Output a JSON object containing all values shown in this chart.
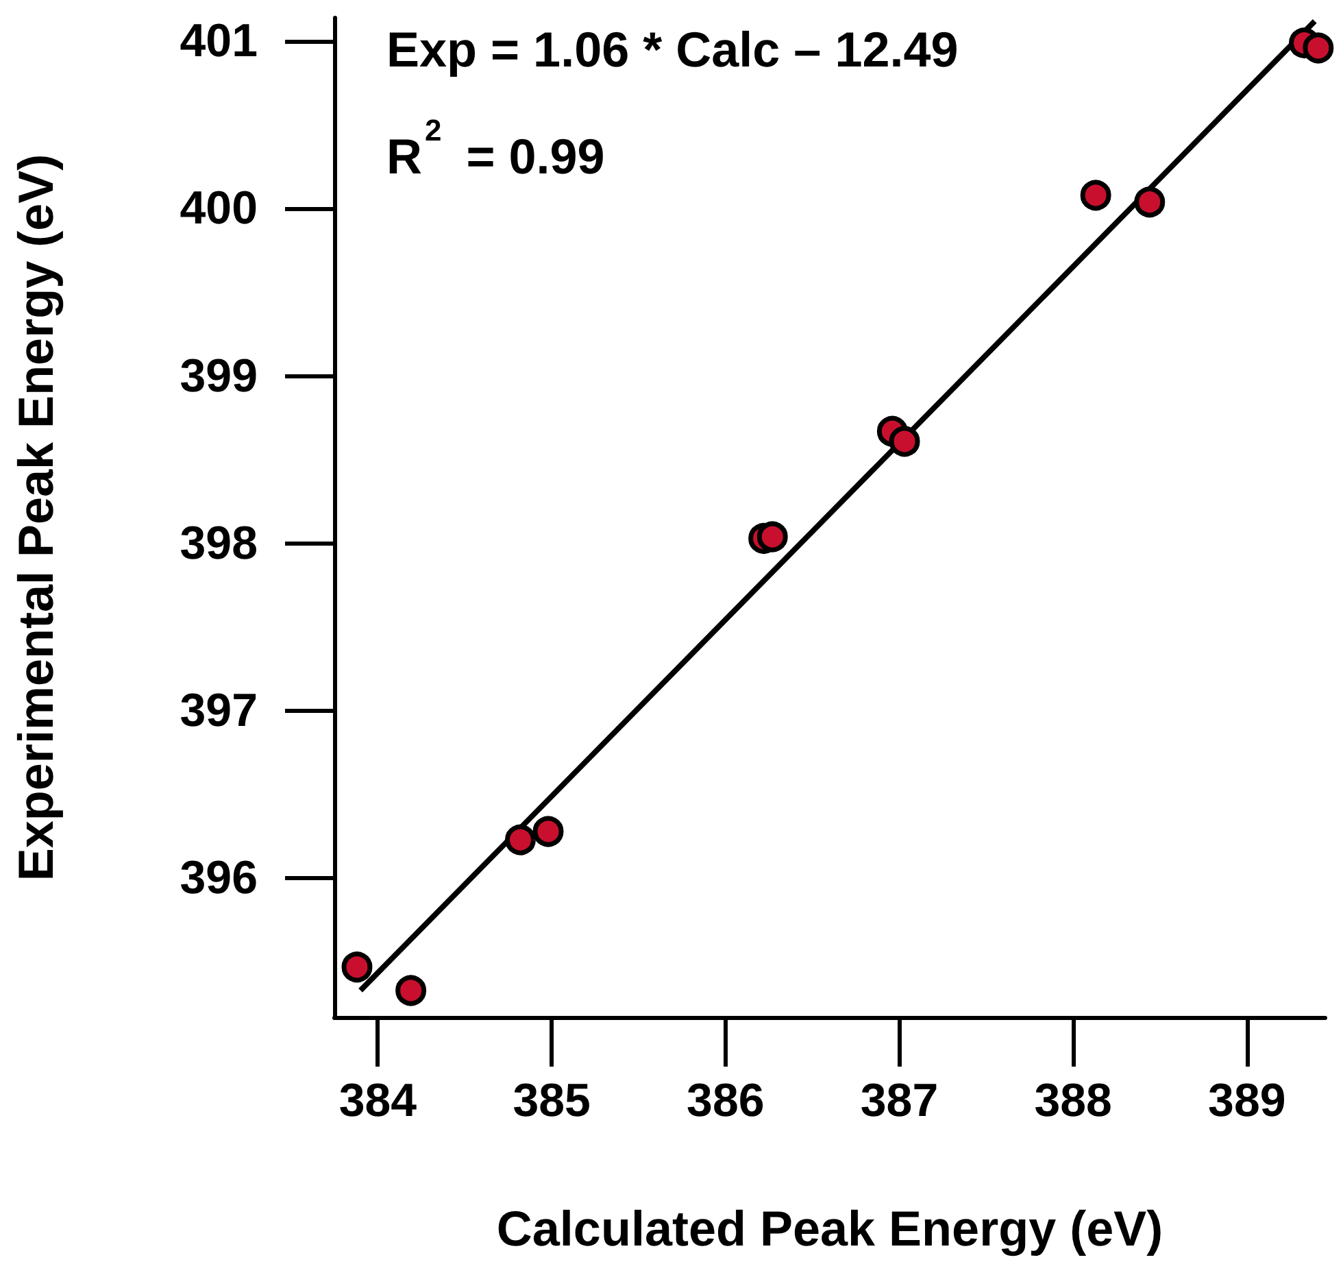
{
  "chart_data": {
    "type": "scatter",
    "xlabel": "Calculated Peak Energy (eV)",
    "ylabel": "Experimental Peak Energy (eV)",
    "annotations": [
      "Exp = 1.06 * Calc – 12.49",
      "R$^{2}$ = 0.99"
    ],
    "xlim": [
      383.75,
      389.45
    ],
    "xticks": [
      384,
      385,
      386,
      387,
      388,
      389
    ],
    "ylim": [
      395.17,
      401.14
    ],
    "yticks": [
      396,
      397,
      398,
      399,
      400,
      401
    ],
    "grid": false,
    "marker": "circle",
    "series": [
      {
        "type": "line",
        "color": "#000000",
        "x": [
          383.9,
          389.39
        ],
        "values": [
          395.33,
          401.12
        ],
        "marker": "none",
        "line_style": "solid"
      },
      {
        "color": "#c8102e",
        "x": [
          383.88,
          384.19,
          384.82,
          384.98,
          386.22,
          386.27,
          386.96,
          387.03,
          388.13,
          388.44,
          389.33,
          389.41
        ],
        "values": [
          395.47,
          395.33,
          396.23,
          396.28,
          398.03,
          398.04,
          398.67,
          398.61,
          400.08,
          400.04,
          400.99,
          400.96
        ]
      }
    ]
  }
}
